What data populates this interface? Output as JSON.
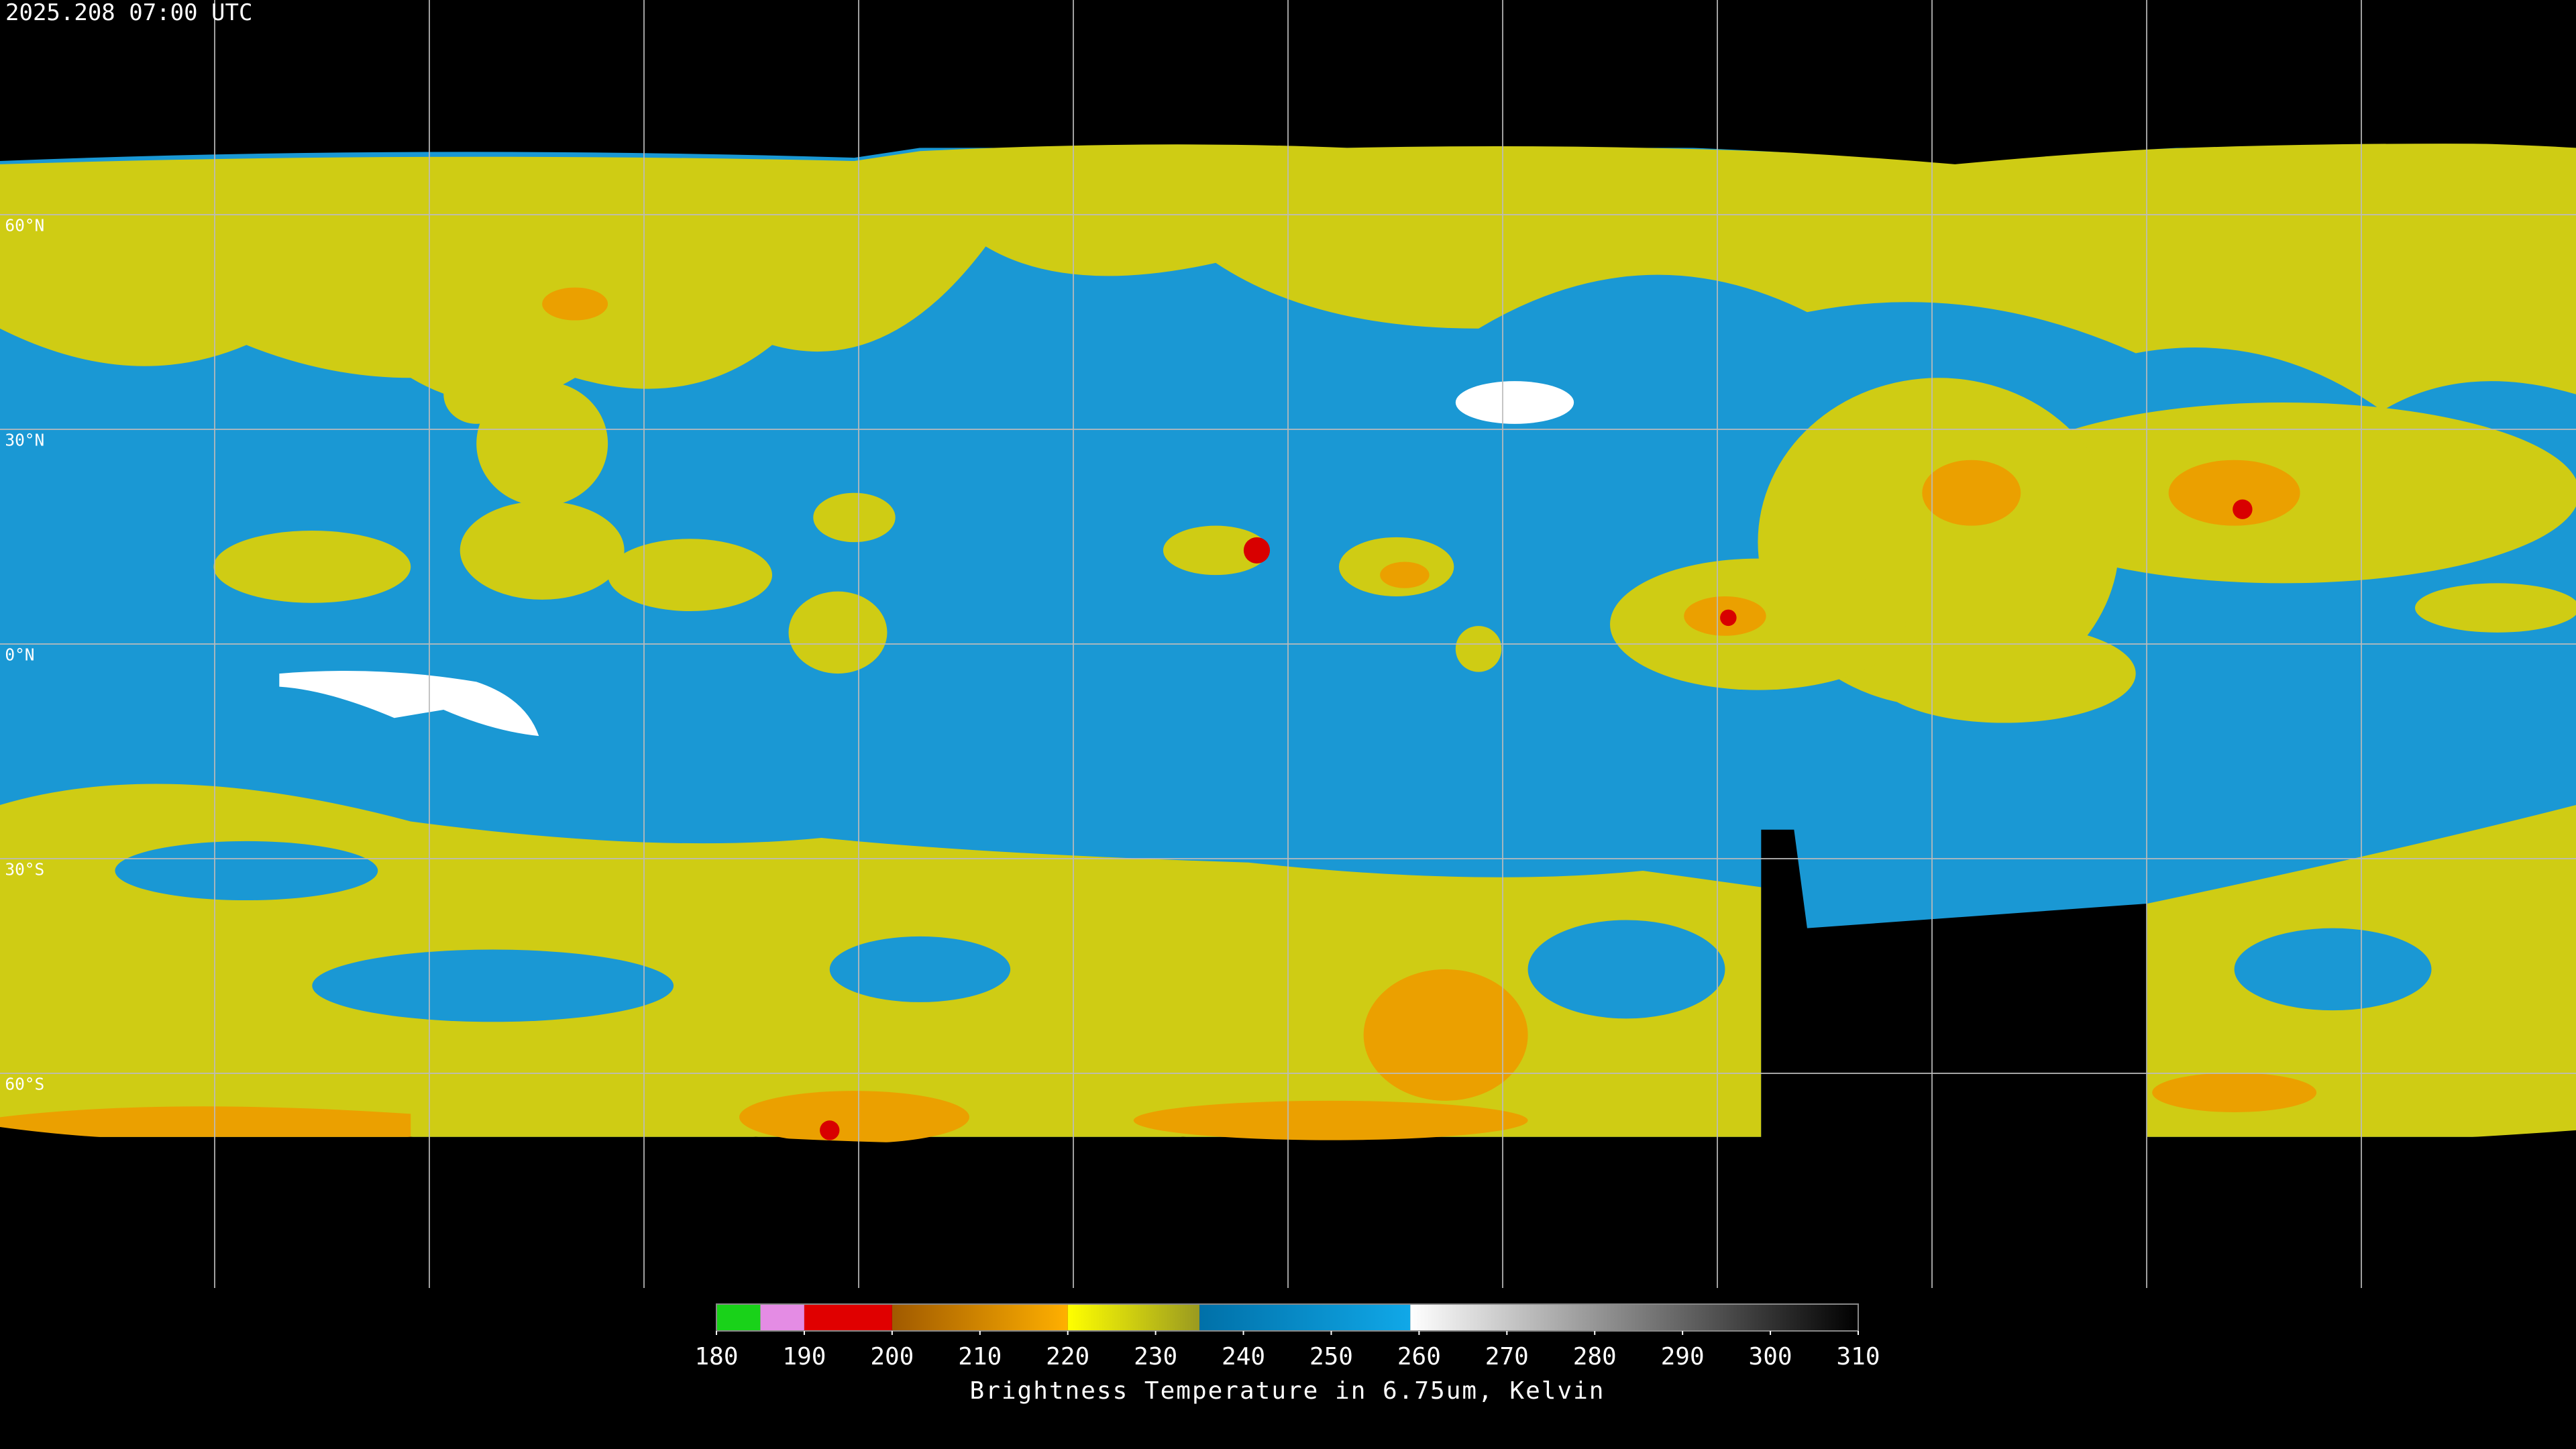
{
  "header": {
    "title": "2025.208 07:00 UTC"
  },
  "map": {
    "lat_labels": [
      "60°N",
      "30°N",
      "0°N",
      "30°S",
      "60°S"
    ]
  },
  "colorbar": {
    "range": [
      180,
      310
    ],
    "ticks": [
      180,
      190,
      200,
      210,
      220,
      230,
      240,
      250,
      260,
      270,
      280,
      290,
      300,
      310
    ],
    "segments": [
      {
        "from": 180,
        "to": 185,
        "colors": [
          "#19d219",
          "#19d219"
        ]
      },
      {
        "from": 185,
        "to": 190,
        "colors": [
          "#e48ce4",
          "#e48ce4"
        ]
      },
      {
        "from": 190,
        "to": 200,
        "colors": [
          "#e00000",
          "#e00000"
        ]
      },
      {
        "from": 200,
        "to": 220,
        "colors": [
          "#a05a00",
          "#ffb000"
        ]
      },
      {
        "from": 220,
        "to": 235,
        "colors": [
          "#ffff00",
          "#9a9a20"
        ]
      },
      {
        "from": 235,
        "to": 259,
        "colors": [
          "#0070a8",
          "#10a8e8"
        ]
      },
      {
        "from": 259,
        "to": 310,
        "colors": [
          "#ffffff",
          "#000000"
        ]
      }
    ],
    "label": "Brightness Temperature in 6.75um, Kelvin"
  }
}
